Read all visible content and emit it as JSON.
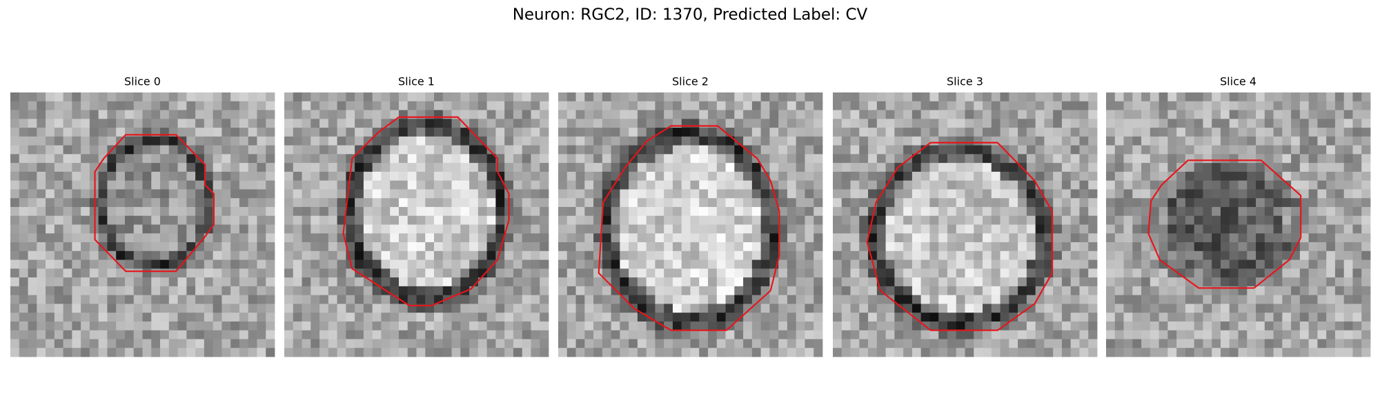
{
  "title": "Neuron: RGC2, ID: 1370, Predicted Label: CV",
  "panels": [
    {
      "title": "Slice 0"
    },
    {
      "title": "Slice 1"
    },
    {
      "title": "Slice 2"
    },
    {
      "title": "Slice 3"
    },
    {
      "title": "Slice 4"
    }
  ]
}
